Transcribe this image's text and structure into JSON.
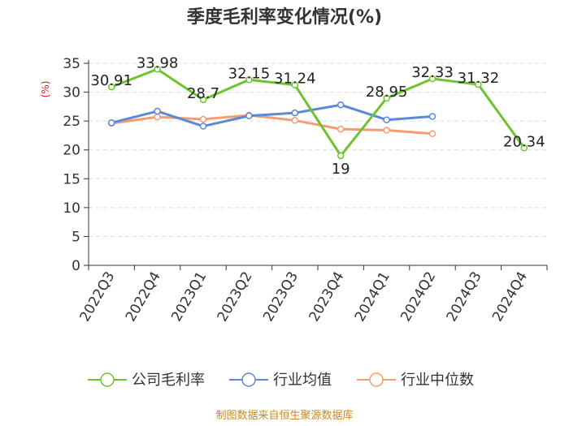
{
  "chart_data": {
    "type": "line",
    "title": "季度毛利率变化情况(%)",
    "ylabel": "(%)",
    "ylim": [
      0,
      35
    ],
    "yticks": [
      0,
      5,
      10,
      15,
      20,
      25,
      30,
      35
    ],
    "categories": [
      "2022Q3",
      "2022Q4",
      "2023Q1",
      "2023Q2",
      "2023Q3",
      "2023Q4",
      "2024Q1",
      "2024Q2",
      "2024Q3",
      "2024Q4"
    ],
    "grid": true,
    "legend_position": "bottom",
    "series": [
      {
        "name": "公司毛利率",
        "color": "#6cc52f",
        "values": [
          30.91,
          33.98,
          28.7,
          32.15,
          31.24,
          19,
          28.95,
          32.33,
          31.32,
          20.34
        ],
        "labels": [
          "30.91",
          "33.98",
          "28.7",
          "32.15",
          "31.24",
          "19",
          "28.95",
          "32.33",
          "31.32",
          "20.34"
        ]
      },
      {
        "name": "行业均值",
        "color": "#5b88d8",
        "values": [
          24.7,
          26.7,
          24.1,
          25.9,
          26.4,
          27.8,
          25.2,
          25.8,
          null,
          null
        ]
      },
      {
        "name": "行业中位数",
        "color": "#f59d70",
        "values": [
          24.6,
          25.7,
          25.3,
          26.0,
          25.1,
          23.6,
          23.4,
          22.8,
          null,
          null
        ]
      }
    ]
  },
  "source": "制图数据来自恒生聚源数据库"
}
